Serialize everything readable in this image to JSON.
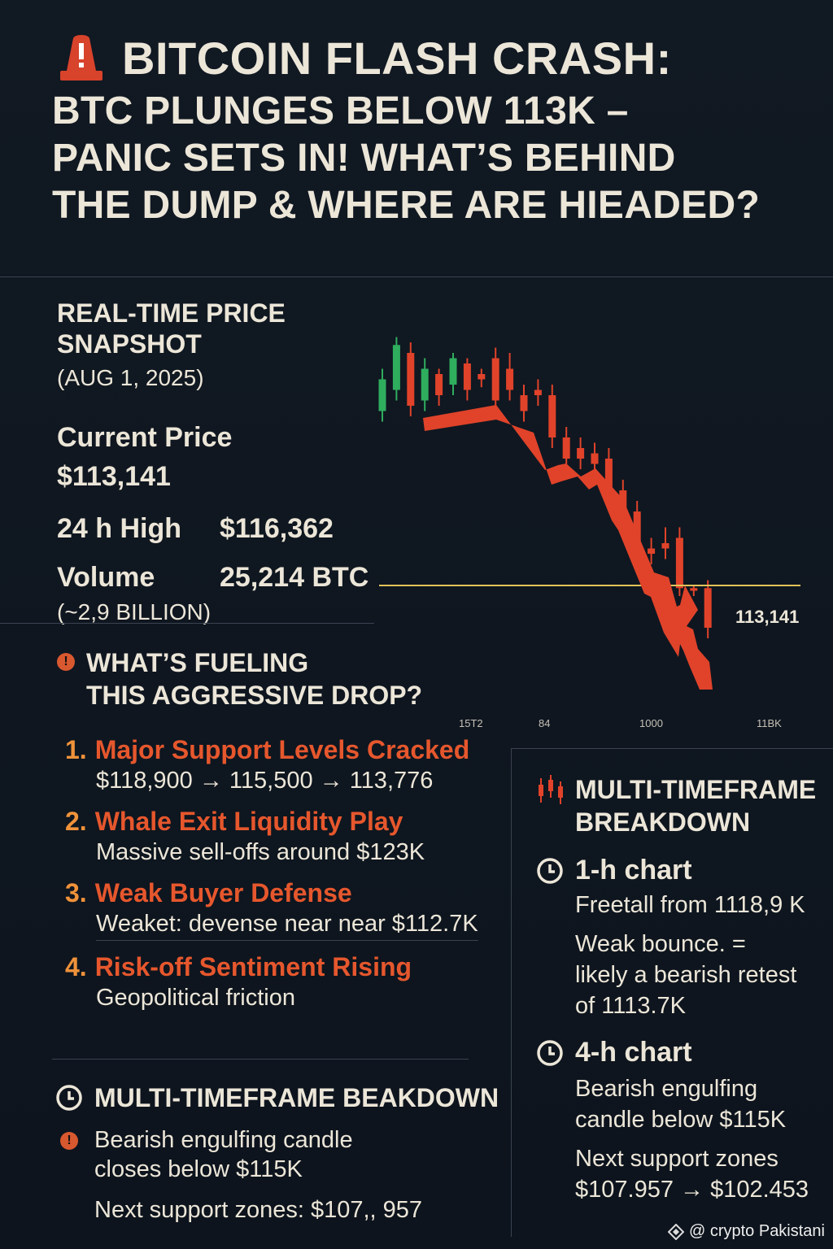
{
  "headline": {
    "line1": "BITCOIN FLASH CRASH:",
    "line2": "BTC PLUNGES BELOW 113K –",
    "line3": "PANIC SETS IN! WHAT’S BEHIND",
    "line4": "THE DUMP & WHERE ARE HIEADED?"
  },
  "snapshot": {
    "title": "REAL-TIME PRICE SNAPSHOT",
    "date": "(AUG 1, 2025)",
    "current_label": "Current Price",
    "current_value": "$113,141",
    "high_label": "24 h High",
    "high_value": "$116,362",
    "volume_label": "Volume",
    "volume_value": "25,214 BTC",
    "volume_note": "(~2,9 BILLION)"
  },
  "fueling": {
    "line1": "WHAT’S FUELING",
    "line2": "THIS AGGRESSIVE DROP?"
  },
  "reasons": [
    {
      "num": "1.",
      "title": "Major Support Levels Cracked",
      "sub": "$118,900 → 115,500 → 113,776"
    },
    {
      "num": "2.",
      "title": "Whale Exit Liquidity Play",
      "sub": "Massive sell-offs around $123K"
    },
    {
      "num": "3.",
      "title": "Weak Buyer Defense",
      "sub": "Weaket: devense near near $112.7K"
    },
    {
      "num": "4.",
      "title": "Risk-off Sentiment Rising",
      "sub": "Geopolitical friction"
    }
  ],
  "mtf_left": {
    "title": "MULTI-TIMEFRAME BEAKDOWN",
    "line1": "Bearish engulfing candle",
    "line2": "closes below $115K",
    "line3": "Next support zones: $107,, 957"
  },
  "mtf_right": {
    "title1": "MULTI-TIMEFRAME",
    "title2": "BREAKDOWN",
    "h1": "1-h chart",
    "h1_l1": "Freetall from 1118,9 K",
    "h1_l2": "Weak bounce. =",
    "h1_l3": "likely a bearish retest",
    "h1_l4": "of 1113.7K",
    "h4": "4-h chart",
    "h4_l1": "Bearish engulfing",
    "h4_l2": "candle below $115K",
    "h4_l3": "Next support zones",
    "h4_l4": "$107.957 → $102.453"
  },
  "watermark": "@ crypto Pakistani",
  "chart_data": {
    "type": "candlestick",
    "price_label": "113,141",
    "x_tick_labels": [
      "15T2",
      "84",
      "1000",
      "11BK"
    ],
    "candles": [
      {
        "o": 0.3,
        "c": 0.18,
        "h": 0.34,
        "l": 0.14
      },
      {
        "o": 0.22,
        "c": 0.05,
        "h": 0.26,
        "l": 0.02
      },
      {
        "o": 0.08,
        "c": 0.28,
        "h": 0.32,
        "l": 0.04
      },
      {
        "o": 0.26,
        "c": 0.14,
        "h": 0.3,
        "l": 0.1
      },
      {
        "o": 0.16,
        "c": 0.24,
        "h": 0.28,
        "l": 0.14
      },
      {
        "o": 0.2,
        "c": 0.1,
        "h": 0.24,
        "l": 0.08
      },
      {
        "o": 0.12,
        "c": 0.22,
        "h": 0.26,
        "l": 0.1
      },
      {
        "o": 0.16,
        "c": 0.18,
        "h": 0.21,
        "l": 0.14
      },
      {
        "o": 0.1,
        "c": 0.26,
        "h": 0.3,
        "l": 0.06
      },
      {
        "o": 0.14,
        "c": 0.22,
        "h": 0.26,
        "l": 0.08
      },
      {
        "o": 0.24,
        "c": 0.3,
        "h": 0.34,
        "l": 0.2
      },
      {
        "o": 0.22,
        "c": 0.24,
        "h": 0.28,
        "l": 0.18
      },
      {
        "o": 0.24,
        "c": 0.4,
        "h": 0.44,
        "l": 0.2
      },
      {
        "o": 0.4,
        "c": 0.48,
        "h": 0.52,
        "l": 0.36
      },
      {
        "o": 0.44,
        "c": 0.48,
        "h": 0.52,
        "l": 0.4
      },
      {
        "o": 0.46,
        "c": 0.5,
        "h": 0.54,
        "l": 0.42
      },
      {
        "o": 0.48,
        "c": 0.64,
        "h": 0.68,
        "l": 0.44
      },
      {
        "o": 0.6,
        "c": 0.68,
        "h": 0.72,
        "l": 0.56
      },
      {
        "o": 0.68,
        "c": 0.8,
        "h": 0.84,
        "l": 0.64
      },
      {
        "o": 0.82,
        "c": 0.84,
        "h": 0.88,
        "l": 0.78
      },
      {
        "o": 0.8,
        "c": 0.82,
        "h": 0.86,
        "l": 0.74
      },
      {
        "o": 0.78,
        "c": 0.97,
        "h": 1.0,
        "l": 0.74
      },
      {
        "o": 0.97,
        "c": 0.98,
        "h": 1.0,
        "l": 0.96
      },
      {
        "o": 0.97,
        "c": 1.12,
        "h": 1.16,
        "l": 0.94
      }
    ]
  }
}
